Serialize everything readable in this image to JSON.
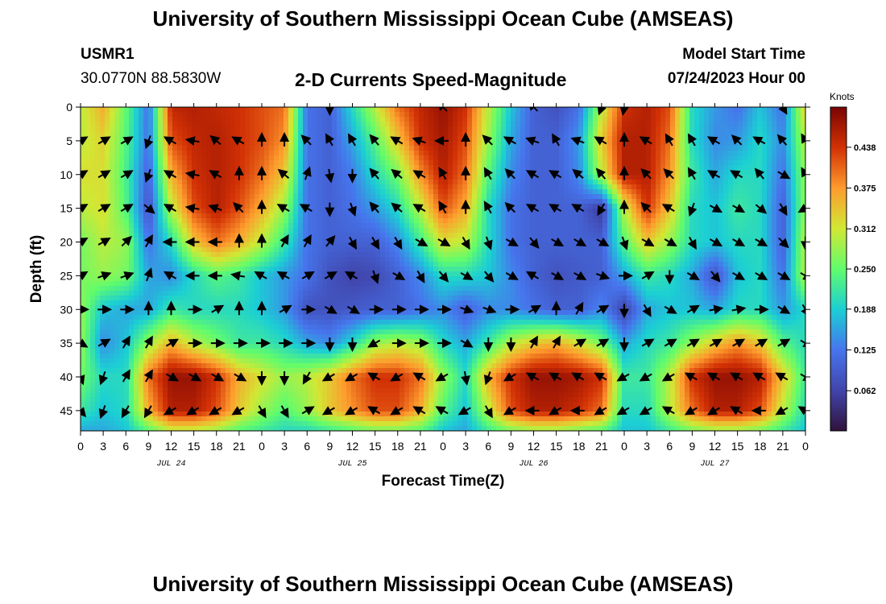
{
  "header": {
    "title": "University of Southern Mississippi Ocean Cube (AMSEAS)",
    "station_id": "USMR1",
    "coordinates": "30.0770N  88.5830W",
    "plot_title": "2-D Currents Speed-Magnitude",
    "model_start_label": "Model Start Time",
    "model_start_value": "07/24/2023 Hour 00"
  },
  "footer": {
    "title": "University of Southern Mississippi Ocean Cube (AMSEAS)"
  },
  "colorbar": {
    "unit_label": "Knots",
    "ticks": [
      "0.438",
      "0.375",
      "0.312",
      "0.250",
      "0.188",
      "0.125",
      "0.062"
    ],
    "tick_values": [
      0.438,
      0.375,
      0.312,
      0.25,
      0.188,
      0.125,
      0.062
    ],
    "range": [
      0,
      0.5
    ]
  },
  "chart_data": {
    "type": "heatmap",
    "title": "2-D Currents Speed-Magnitude",
    "xlabel": "Forecast Time(Z)",
    "ylabel": "Depth (ft)",
    "units": "Knots",
    "x_range_hours": [
      0,
      96
    ],
    "y_range_ft": [
      0,
      48
    ],
    "x_tick_hours": [
      0,
      3,
      6,
      9,
      12,
      15,
      18,
      21,
      24,
      27,
      30,
      33,
      36,
      39,
      42,
      45,
      48,
      51,
      54,
      57,
      60,
      63,
      66,
      69,
      72,
      75,
      78,
      81,
      84,
      87,
      90,
      93,
      96
    ],
    "x_tick_labels": [
      "0",
      "3",
      "6",
      "9",
      "12",
      "15",
      "18",
      "21",
      "0",
      "3",
      "6",
      "9",
      "12",
      "15",
      "18",
      "21",
      "0",
      "3",
      "6",
      "9",
      "12",
      "15",
      "18",
      "21",
      "0",
      "3",
      "6",
      "9",
      "12",
      "15",
      "18",
      "21",
      "0"
    ],
    "y_ticks": [
      0,
      5,
      10,
      15,
      20,
      25,
      30,
      35,
      40,
      45
    ],
    "y_tick_labels": [
      "0",
      "5",
      "10",
      "15",
      "20",
      "25",
      "30",
      "35",
      "40",
      "45"
    ],
    "day_labels": [
      {
        "hour": 12,
        "label": "JUL 24"
      },
      {
        "hour": 36,
        "label": "JUL 25"
      },
      {
        "hour": 60,
        "label": "JUL 26"
      },
      {
        "hour": 84,
        "label": "JUL 27"
      }
    ],
    "speed_depths_ft": [
      0,
      5,
      10,
      15,
      20,
      25,
      30,
      35,
      40,
      45,
      48
    ],
    "speed_hours": [
      0,
      3,
      6,
      9,
      12,
      15,
      18,
      21,
      24,
      27,
      30,
      33,
      36,
      39,
      42,
      45,
      48,
      51,
      54,
      57,
      60,
      63,
      66,
      69,
      72,
      75,
      78,
      81,
      84,
      87,
      90,
      93,
      96
    ],
    "speed_knots": [
      [
        0.3,
        0.36,
        0.25,
        0.12,
        0.45,
        0.46,
        0.45,
        0.44,
        0.42,
        0.4,
        0.12,
        0.1,
        0.2,
        0.3,
        0.4,
        0.45,
        0.48,
        0.44,
        0.3,
        0.18,
        0.1,
        0.08,
        0.12,
        0.3,
        0.44,
        0.46,
        0.42,
        0.2,
        0.15,
        0.12,
        0.18,
        0.12,
        0.34
      ],
      [
        0.3,
        0.33,
        0.24,
        0.12,
        0.42,
        0.45,
        0.46,
        0.44,
        0.42,
        0.38,
        0.12,
        0.1,
        0.16,
        0.24,
        0.34,
        0.44,
        0.47,
        0.42,
        0.28,
        0.16,
        0.1,
        0.1,
        0.15,
        0.34,
        0.46,
        0.46,
        0.4,
        0.2,
        0.14,
        0.15,
        0.2,
        0.14,
        0.3
      ],
      [
        0.32,
        0.32,
        0.23,
        0.1,
        0.36,
        0.44,
        0.46,
        0.44,
        0.4,
        0.34,
        0.12,
        0.1,
        0.13,
        0.2,
        0.26,
        0.38,
        0.46,
        0.4,
        0.24,
        0.14,
        0.1,
        0.1,
        0.14,
        0.3,
        0.46,
        0.46,
        0.38,
        0.22,
        0.16,
        0.2,
        0.2,
        0.12,
        0.28
      ],
      [
        0.3,
        0.32,
        0.24,
        0.08,
        0.3,
        0.42,
        0.46,
        0.42,
        0.36,
        0.28,
        0.12,
        0.1,
        0.12,
        0.15,
        0.2,
        0.3,
        0.42,
        0.36,
        0.2,
        0.12,
        0.1,
        0.1,
        0.1,
        0.05,
        0.3,
        0.44,
        0.34,
        0.2,
        0.18,
        0.22,
        0.2,
        0.1,
        0.28
      ],
      [
        0.26,
        0.3,
        0.28,
        0.12,
        0.2,
        0.34,
        0.4,
        0.36,
        0.3,
        0.22,
        0.12,
        0.1,
        0.1,
        0.1,
        0.14,
        0.22,
        0.32,
        0.3,
        0.2,
        0.12,
        0.1,
        0.1,
        0.1,
        0.1,
        0.24,
        0.34,
        0.28,
        0.2,
        0.18,
        0.2,
        0.2,
        0.1,
        0.3
      ],
      [
        0.26,
        0.28,
        0.26,
        0.16,
        0.14,
        0.2,
        0.24,
        0.22,
        0.18,
        0.15,
        0.12,
        0.08,
        0.06,
        0.07,
        0.1,
        0.14,
        0.2,
        0.2,
        0.18,
        0.14,
        0.1,
        0.08,
        0.09,
        0.1,
        0.16,
        0.22,
        0.2,
        0.16,
        0.08,
        0.18,
        0.2,
        0.12,
        0.3
      ],
      [
        0.28,
        0.18,
        0.16,
        0.16,
        0.22,
        0.2,
        0.2,
        0.2,
        0.18,
        0.15,
        0.08,
        0.08,
        0.09,
        0.1,
        0.1,
        0.12,
        0.14,
        0.1,
        0.14,
        0.14,
        0.12,
        0.1,
        0.1,
        0.14,
        0.06,
        0.16,
        0.18,
        0.18,
        0.16,
        0.2,
        0.2,
        0.15,
        0.2
      ],
      [
        0.28,
        0.14,
        0.18,
        0.28,
        0.36,
        0.3,
        0.26,
        0.22,
        0.22,
        0.2,
        0.16,
        0.14,
        0.2,
        0.28,
        0.3,
        0.28,
        0.2,
        0.16,
        0.22,
        0.3,
        0.34,
        0.36,
        0.32,
        0.26,
        0.16,
        0.2,
        0.22,
        0.28,
        0.34,
        0.38,
        0.34,
        0.24,
        0.2
      ],
      [
        0.26,
        0.2,
        0.2,
        0.4,
        0.48,
        0.48,
        0.44,
        0.36,
        0.32,
        0.28,
        0.3,
        0.34,
        0.4,
        0.44,
        0.44,
        0.4,
        0.28,
        0.2,
        0.36,
        0.44,
        0.48,
        0.48,
        0.47,
        0.44,
        0.22,
        0.22,
        0.3,
        0.44,
        0.48,
        0.48,
        0.46,
        0.34,
        0.22
      ],
      [
        0.22,
        0.18,
        0.2,
        0.36,
        0.46,
        0.46,
        0.42,
        0.34,
        0.28,
        0.24,
        0.28,
        0.34,
        0.38,
        0.42,
        0.42,
        0.36,
        0.24,
        0.18,
        0.3,
        0.42,
        0.46,
        0.46,
        0.44,
        0.4,
        0.2,
        0.2,
        0.3,
        0.4,
        0.46,
        0.46,
        0.42,
        0.3,
        0.2
      ],
      [
        0.16,
        0.16,
        0.18,
        0.24,
        0.3,
        0.3,
        0.28,
        0.24,
        0.22,
        0.2,
        0.2,
        0.22,
        0.24,
        0.26,
        0.26,
        0.24,
        0.18,
        0.16,
        0.22,
        0.26,
        0.28,
        0.28,
        0.26,
        0.24,
        0.18,
        0.18,
        0.22,
        0.26,
        0.28,
        0.28,
        0.26,
        0.22,
        0.18
      ]
    ],
    "vector_depths_ft": [
      0,
      5,
      10,
      15,
      20,
      25,
      30,
      35,
      40,
      45
    ],
    "vector_hours": [
      0,
      3,
      6,
      9,
      12,
      15,
      18,
      21,
      24,
      27,
      30,
      33,
      36,
      39,
      42,
      45,
      48,
      51,
      54,
      57,
      60,
      63,
      66,
      69,
      72,
      75,
      78,
      81,
      84,
      87,
      90,
      93,
      96
    ],
    "vector_direction_deg": [
      [
        null,
        null,
        null,
        null,
        null,
        null,
        null,
        null,
        null,
        null,
        null,
        180,
        null,
        null,
        null,
        null,
        315,
        null,
        null,
        null,
        315,
        null,
        null,
        200,
        190,
        null,
        null,
        null,
        null,
        null,
        null,
        150,
        null
      ],
      [
        60,
        60,
        60,
        200,
        300,
        280,
        310,
        300,
        0,
        0,
        315,
        330,
        330,
        320,
        300,
        290,
        270,
        0,
        315,
        300,
        290,
        330,
        290,
        300,
        0,
        300,
        330,
        330,
        300,
        315,
        300,
        320,
        330
      ],
      [
        60,
        60,
        60,
        200,
        300,
        280,
        300,
        0,
        0,
        310,
        20,
        170,
        180,
        320,
        310,
        300,
        330,
        0,
        330,
        315,
        300,
        300,
        310,
        320,
        0,
        315,
        315,
        330,
        300,
        300,
        320,
        120,
        330
      ],
      [
        60,
        60,
        60,
        130,
        300,
        280,
        290,
        315,
        0,
        300,
        300,
        180,
        160,
        320,
        310,
        300,
        330,
        0,
        330,
        315,
        300,
        300,
        300,
        210,
        0,
        315,
        300,
        200,
        120,
        120,
        130,
        150,
        240
      ],
      [
        60,
        60,
        45,
        30,
        270,
        270,
        270,
        0,
        0,
        30,
        30,
        40,
        150,
        150,
        150,
        120,
        120,
        150,
        160,
        120,
        140,
        120,
        120,
        120,
        160,
        120,
        120,
        150,
        120,
        120,
        120,
        135,
        180
      ],
      [
        60,
        70,
        70,
        20,
        300,
        270,
        270,
        280,
        300,
        300,
        60,
        60,
        300,
        160,
        120,
        150,
        140,
        120,
        140,
        120,
        300,
        120,
        120,
        110,
        90,
        60,
        180,
        120,
        140,
        120,
        120,
        120,
        120
      ],
      [
        90,
        90,
        90,
        0,
        0,
        90,
        60,
        0,
        0,
        60,
        90,
        120,
        120,
        90,
        90,
        90,
        90,
        110,
        110,
        90,
        60,
        0,
        30,
        60,
        180,
        150,
        120,
        60,
        80,
        80,
        90,
        120,
        150
      ],
      [
        120,
        60,
        30,
        30,
        60,
        90,
        90,
        90,
        90,
        90,
        90,
        180,
        180,
        240,
        90,
        90,
        90,
        120,
        180,
        180,
        30,
        30,
        60,
        60,
        180,
        60,
        60,
        60,
        60,
        60,
        60,
        60,
        120
      ],
      [
        160,
        200,
        30,
        30,
        120,
        120,
        120,
        120,
        180,
        180,
        210,
        240,
        240,
        300,
        240,
        300,
        240,
        170,
        200,
        240,
        300,
        300,
        300,
        300,
        240,
        240,
        240,
        300,
        300,
        300,
        300,
        300,
        120
      ],
      [
        140,
        200,
        210,
        210,
        240,
        240,
        240,
        240,
        150,
        150,
        60,
        240,
        240,
        300,
        240,
        300,
        300,
        240,
        150,
        240,
        270,
        240,
        270,
        240,
        240,
        240,
        300,
        240,
        240,
        300,
        270,
        240,
        300
      ]
    ]
  }
}
